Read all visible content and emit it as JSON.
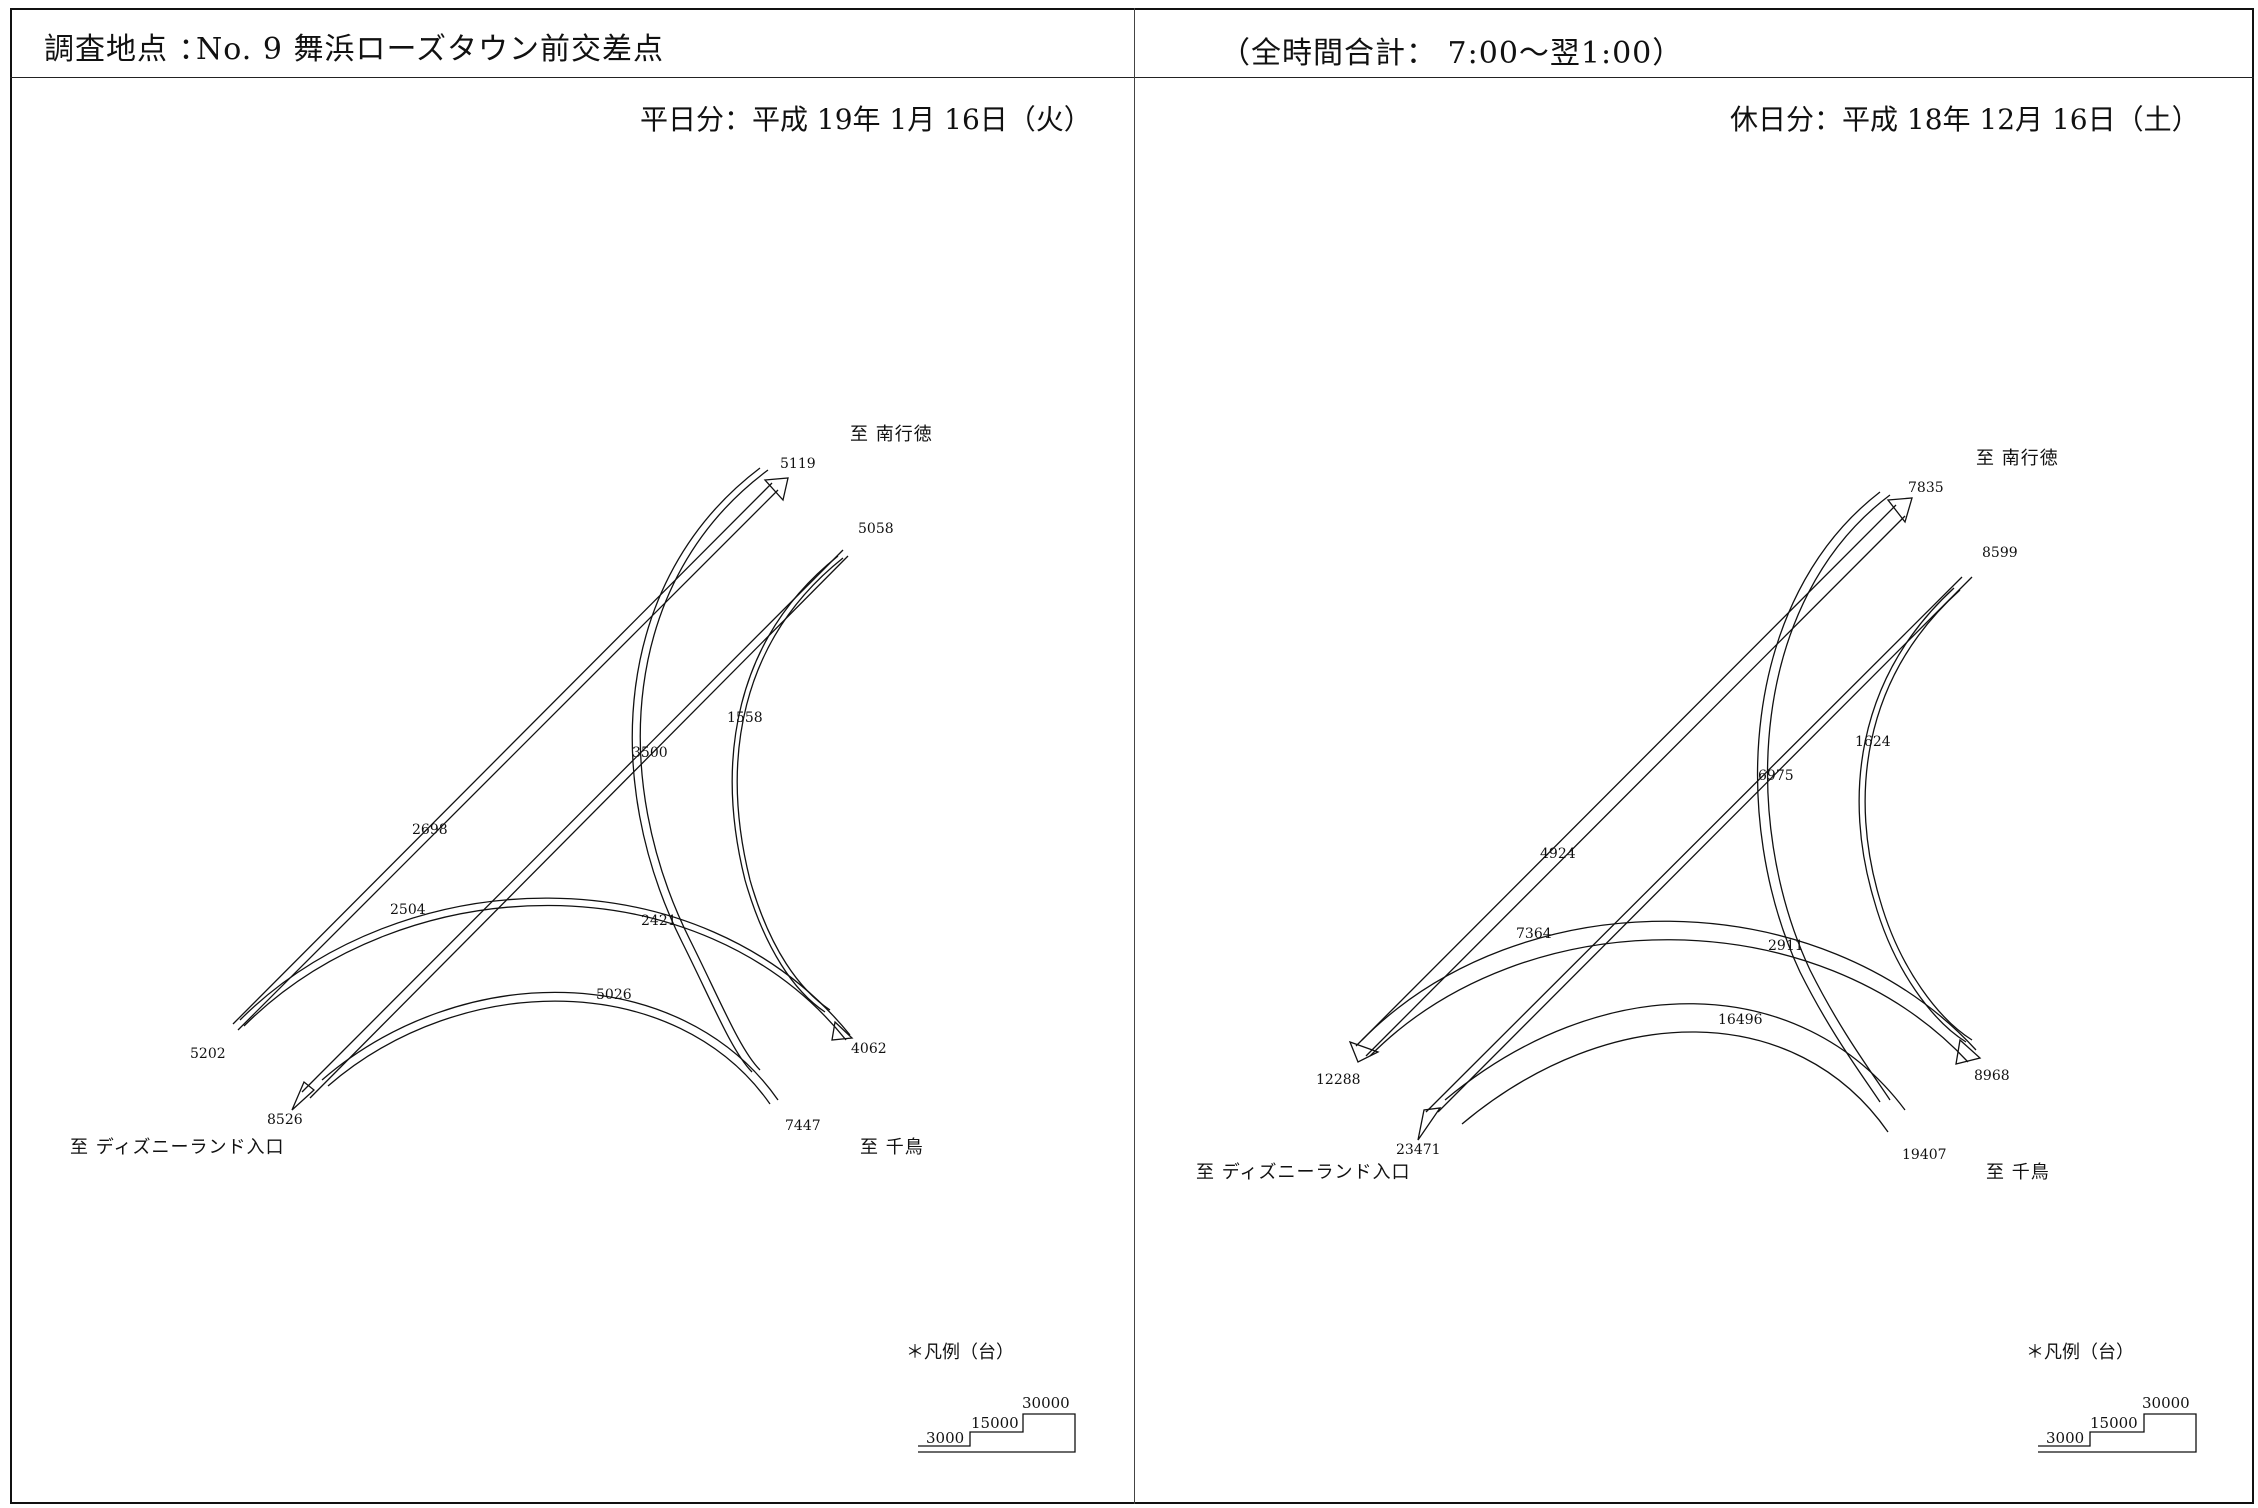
{
  "header": {
    "site_label": "調査地点 ：",
    "site_name": "No. 9 舞浜ローズタウン前交差点",
    "period": "（全時間合計： 7:00～翌1:00）"
  },
  "weekday": {
    "date": "平日分：平成 19年 1月 16日（火）",
    "dest_north": "至 南行徳",
    "dest_southeast": "至 千鳥",
    "dest_southwest": "至 ディズニーランド入口",
    "labels": {
      "n_out": "5119",
      "ne_in": "5058",
      "diag_a": "2698",
      "curve_center": "3500",
      "curve_east": "1558",
      "arc_upper": "2504",
      "arc_center": "2421",
      "arc_lower": "5026",
      "w_in": "5202",
      "sw_out": "8526",
      "se_out": "4062",
      "se_in": "7447"
    }
  },
  "holiday": {
    "date": "休日分：平成 18年 12月 16日（土）",
    "dest_north": "至 南行徳",
    "dest_southeast": "至 千鳥",
    "dest_southwest": "至 ディズニーランド入口",
    "labels": {
      "n_out": "7835",
      "ne_in": "8599",
      "diag_a": "4924",
      "curve_center": "6975",
      "curve_east": "1624",
      "arc_upper": "7364",
      "arc_center": "2911",
      "arc_lower": "16496",
      "w_in": "12288",
      "sw_out": "23471",
      "se_out": "8968",
      "se_in": "19407"
    }
  },
  "legend": {
    "title": "＊凡例（台）",
    "values": [
      "30000",
      "15000",
      "3000"
    ]
  }
}
